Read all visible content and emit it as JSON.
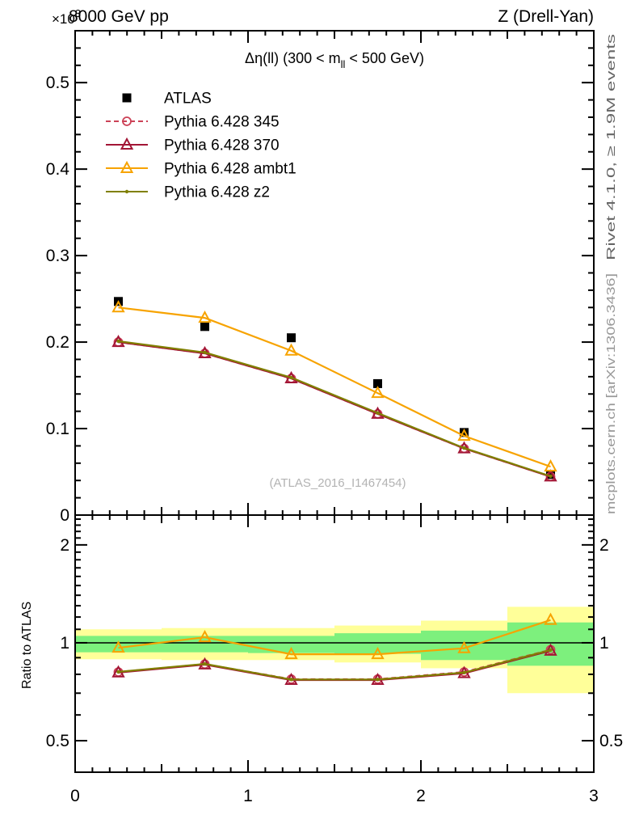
{
  "header": {
    "energy_title": "8000 GeV pp",
    "process_title": "Z (Drell-Yan)",
    "scale_factor": {
      "base": "×10",
      "exp": "3"
    }
  },
  "panel_title": {
    "part1": "Δη(ll) (300 < m",
    "sub": "ll",
    "part2": " < 500 GeV)"
  },
  "watermark": "(ATLAS_2016_I1467454)",
  "side_notes": {
    "rivet": "Rivet 4.1.0, ≥ 1.9M events",
    "mcplots": "mcplots.cern.ch [arXiv:1306.3436]"
  },
  "ratio_axis_label": "Ratio to ATLAS",
  "legend": [
    {
      "label": "ATLAS",
      "marker": "square",
      "color": "#000000",
      "line": "none"
    },
    {
      "label": "Pythia 6.428 345",
      "marker": "circle-open",
      "color": "#cc4257",
      "line": "dashed"
    },
    {
      "label": "Pythia 6.428 370",
      "marker": "triangle-open",
      "color": "#a21636",
      "line": "solid"
    },
    {
      "label": "Pythia 6.428 ambt1",
      "marker": "triangle-open",
      "color": "#f7a300",
      "line": "solid"
    },
    {
      "label": "Pythia 6.428 z2",
      "marker": "dot",
      "color": "#808000",
      "line": "solid"
    }
  ],
  "chart_data": {
    "type": "line",
    "title": "Δη(ll) (300 < m_ll < 500 GeV)",
    "xlabel": "",
    "x_values": [
      0.25,
      0.75,
      1.25,
      1.75,
      2.25,
      2.75
    ],
    "xlim": [
      0,
      3
    ],
    "x_ticks": [
      {
        "v": 0,
        "label": "0"
      },
      {
        "v": 1,
        "label": "1"
      },
      {
        "v": 2,
        "label": "2"
      },
      {
        "v": 3,
        "label": "3"
      }
    ],
    "x_minor_step": 0.1,
    "x_medium_step": 0.5,
    "main_panel": {
      "ylim": [
        0,
        0.56
      ],
      "y_minor_step": 0.02,
      "y_ticks": [
        {
          "v": 0,
          "label": "0"
        },
        {
          "v": 0.1,
          "label": "0.1"
        },
        {
          "v": 0.2,
          "label": "0.2"
        },
        {
          "v": 0.3,
          "label": "0.3"
        },
        {
          "v": 0.4,
          "label": "0.4"
        },
        {
          "v": 0.5,
          "label": "0.5"
        }
      ],
      "series": [
        {
          "name": "ATLAS",
          "marker": "square",
          "color": "#000000",
          "line": "none",
          "values": [
            0.247,
            0.218,
            0.205,
            0.152,
            0.0955,
            0.047
          ]
        },
        {
          "name": "Pythia 6.428 345",
          "marker": "circle-open",
          "color": "#cc4257",
          "line": "dashed",
          "values": [
            0.2,
            0.187,
            0.158,
            0.117,
            0.077,
            0.0445
          ]
        },
        {
          "name": "Pythia 6.428 370",
          "marker": "triangle-open",
          "color": "#a21636",
          "line": "solid",
          "values": [
            0.2,
            0.187,
            0.158,
            0.117,
            0.077,
            0.0445
          ]
        },
        {
          "name": "Pythia 6.428 ambt1",
          "marker": "triangle-open",
          "color": "#f7a300",
          "line": "solid",
          "values": [
            0.24,
            0.228,
            0.19,
            0.141,
            0.0915,
            0.056
          ]
        },
        {
          "name": "Pythia 6.428 z2",
          "marker": "dot",
          "color": "#808000",
          "line": "solid",
          "values": [
            0.201,
            0.188,
            0.159,
            0.118,
            0.0775,
            0.045
          ]
        }
      ]
    },
    "ratio_panel": {
      "scale": "log",
      "ylim": [
        0.4,
        2.47
      ],
      "reference_line": 1.0,
      "y_ticks": [
        {
          "v": 0.5,
          "label": "0.5"
        },
        {
          "v": 1,
          "label": "1"
        },
        {
          "v": 2,
          "label": "2"
        }
      ],
      "y_minor_ticks": [
        0.4,
        0.6,
        0.7,
        0.8,
        0.9,
        1.1,
        1.2,
        1.3,
        1.4,
        1.5,
        1.6,
        1.7,
        1.8,
        1.9,
        2.1,
        2.2,
        2.3,
        2.4
      ],
      "bands": {
        "bin_edges": [
          0,
          0.5,
          1,
          1.5,
          2,
          2.5,
          3
        ],
        "yellow": {
          "color": "#ffff99",
          "hi": [
            1.1,
            1.11,
            1.11,
            1.13,
            1.17,
            1.29
          ],
          "lo": [
            0.89,
            0.885,
            0.885,
            0.87,
            0.835,
            0.7
          ]
        },
        "green": {
          "color": "#7df07d",
          "hi": [
            1.05,
            1.05,
            1.05,
            1.07,
            1.09,
            1.155
          ],
          "lo": [
            0.935,
            0.935,
            0.93,
            0.925,
            0.885,
            0.85
          ]
        }
      },
      "series": [
        {
          "name": "Pythia 6.428 345",
          "marker": "circle-open",
          "color": "#cc4257",
          "line": "dashed",
          "values": [
            0.813,
            0.86,
            0.773,
            0.773,
            0.813,
            0.952
          ]
        },
        {
          "name": "Pythia 6.428 370",
          "marker": "triangle-open",
          "color": "#a21636",
          "line": "solid",
          "values": [
            0.81,
            0.857,
            0.768,
            0.768,
            0.806,
            0.945
          ]
        },
        {
          "name": "Pythia 6.428 ambt1",
          "marker": "triangle-open",
          "color": "#f7a300",
          "line": "solid",
          "values": [
            0.965,
            1.04,
            0.922,
            0.922,
            0.962,
            1.175
          ]
        },
        {
          "name": "Pythia 6.428 z2",
          "marker": "dot",
          "color": "#808000",
          "line": "solid",
          "values": [
            0.814,
            0.861,
            0.771,
            0.771,
            0.81,
            0.95
          ]
        }
      ]
    }
  }
}
